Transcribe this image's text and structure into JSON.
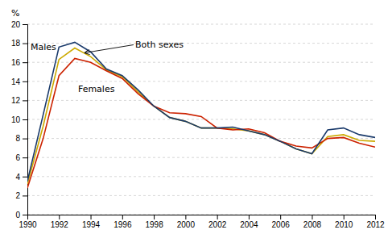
{
  "chart_data": {
    "type": "line",
    "y_label": "%",
    "x": [
      1990,
      1991,
      1992,
      1993,
      1994,
      1995,
      1996,
      1997,
      1998,
      1999,
      2000,
      2001,
      2002,
      2003,
      2004,
      2005,
      2006,
      2007,
      2008,
      2009,
      2010,
      2011,
      2012
    ],
    "series": [
      {
        "name": "Both sexes",
        "color": "#ccaa00",
        "values": [
          3.2,
          9.3,
          16.3,
          17.5,
          16.6,
          15.2,
          14.5,
          12.9,
          11.4,
          10.2,
          9.8,
          9.1,
          9.1,
          9.0,
          8.8,
          8.4,
          7.7,
          6.9,
          6.4,
          8.2,
          8.4,
          7.8,
          7.7
        ]
      },
      {
        "name": "Females",
        "color": "#cc2200",
        "values": [
          2.8,
          8.0,
          14.6,
          16.4,
          16.0,
          15.1,
          14.3,
          12.7,
          11.4,
          10.7,
          10.6,
          10.3,
          9.1,
          8.9,
          9.0,
          8.6,
          7.7,
          7.2,
          7.0,
          8.0,
          8.1,
          7.5,
          7.1
        ]
      },
      {
        "name": "Males",
        "color": "#1a3a6b",
        "values": [
          3.5,
          10.5,
          17.6,
          18.1,
          17.1,
          15.3,
          14.6,
          13.1,
          11.4,
          10.2,
          9.8,
          9.1,
          9.1,
          9.2,
          8.8,
          8.4,
          7.7,
          6.9,
          6.4,
          8.9,
          9.1,
          8.4,
          8.1
        ]
      }
    ],
    "xlim": [
      1990,
      2012
    ],
    "xticks": [
      1990,
      1992,
      1994,
      1996,
      1998,
      2000,
      2002,
      2004,
      2006,
      2008,
      2010,
      2012
    ],
    "ylim": [
      0,
      20
    ],
    "yticks": [
      0,
      2,
      4,
      6,
      8,
      10,
      12,
      14,
      16,
      18,
      20
    ],
    "grid": true
  }
}
